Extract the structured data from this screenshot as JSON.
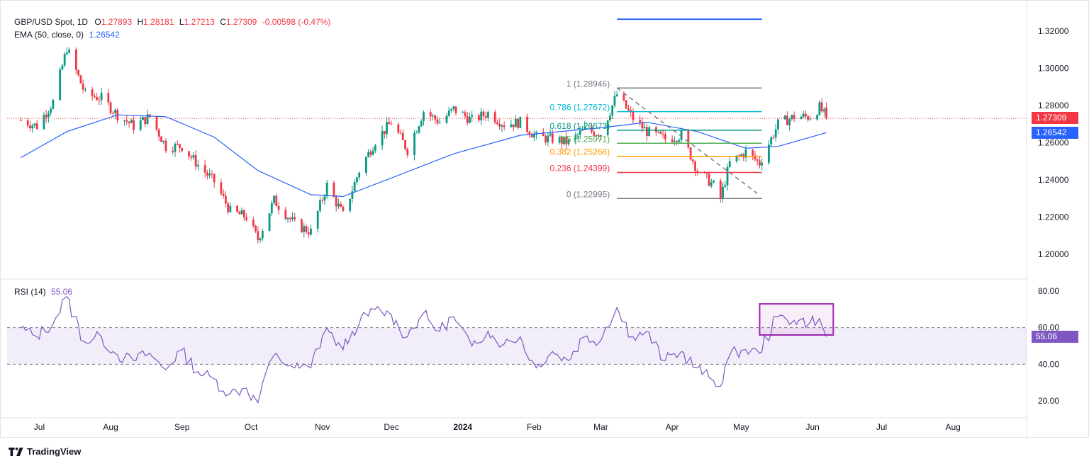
{
  "header": {
    "symbol": "GBP/USD Spot, 1D",
    "open_label": "O",
    "open": "1.27893",
    "high_label": "H",
    "high": "1.28181",
    "low_label": "L",
    "low": "1.27213",
    "close_label": "C",
    "close": "1.27309",
    "change": "-0.00598 (-0.47%)",
    "ema_label": "EMA (50, close, 0)",
    "ema_value": "1.26542",
    "rsi_label": "RSI (14)",
    "rsi_value": "55.06"
  },
  "price_tags": {
    "last": "1.27309",
    "ema": "1.26542",
    "rsi": "55.06"
  },
  "logo_text": "TradingView",
  "colors": {
    "up": "#089981",
    "down": "#f23645",
    "ema": "#2962ff",
    "rsi": "#7e57c2",
    "fib_gray": "#787b86",
    "fib_teal": "#00bcd4",
    "fib_green": "#4caf50",
    "fib_orange": "#ff9800",
    "fib_red": "#f23645",
    "box": "#9c27b0"
  },
  "chart_data": [
    {
      "type": "candlestick",
      "title": "GBP/USD Spot, 1D",
      "y_range": [
        1.19,
        1.33
      ],
      "y_ticks": [
        "1.32000",
        "1.30000",
        "1.28000",
        "1.26000",
        "1.24000",
        "1.22000",
        "1.20000"
      ],
      "x_ticks": [
        "Jul",
        "Aug",
        "Sep",
        "Oct",
        "Nov",
        "Dec",
        "2024",
        "Feb",
        "Mar",
        "Apr",
        "May",
        "Jun",
        "Jul",
        "Aug"
      ],
      "last_price": 1.27309,
      "ema50_last": 1.26542,
      "close_path": [
        [
          "2023-06-23",
          1.272
        ],
        [
          "2023-06-30",
          1.269
        ],
        [
          "2023-07-07",
          1.282
        ],
        [
          "2023-07-13",
          1.311
        ],
        [
          "2023-07-21",
          1.286
        ],
        [
          "2023-07-28",
          1.284
        ],
        [
          "2023-08-04",
          1.275
        ],
        [
          "2023-08-11",
          1.269
        ],
        [
          "2023-08-18",
          1.274
        ],
        [
          "2023-08-25",
          1.258
        ],
        [
          "2023-09-01",
          1.258
        ],
        [
          "2023-09-08",
          1.248
        ],
        [
          "2023-09-15",
          1.239
        ],
        [
          "2023-09-22",
          1.223
        ],
        [
          "2023-09-29",
          1.22
        ],
        [
          "2023-10-04",
          1.208
        ],
        [
          "2023-10-11",
          1.229
        ],
        [
          "2023-10-20",
          1.216
        ],
        [
          "2023-10-27",
          1.212
        ],
        [
          "2023-11-03",
          1.237
        ],
        [
          "2023-11-10",
          1.221
        ],
        [
          "2023-11-17",
          1.245
        ],
        [
          "2023-11-24",
          1.261
        ],
        [
          "2023-12-01",
          1.271
        ],
        [
          "2023-12-08",
          1.256
        ],
        [
          "2023-12-15",
          1.277
        ],
        [
          "2023-12-22",
          1.271
        ],
        [
          "2023-12-28",
          1.278
        ],
        [
          "2024-01-05",
          1.272
        ],
        [
          "2024-01-12",
          1.276
        ],
        [
          "2024-01-19",
          1.27
        ],
        [
          "2024-01-26",
          1.271
        ],
        [
          "2024-02-02",
          1.263
        ],
        [
          "2024-02-09",
          1.262
        ],
        [
          "2024-02-16",
          1.26
        ],
        [
          "2024-02-23",
          1.267
        ],
        [
          "2024-03-01",
          1.265
        ],
        [
          "2024-03-08",
          1.286
        ],
        [
          "2024-03-15",
          1.273
        ],
        [
          "2024-03-21",
          1.266
        ],
        [
          "2024-03-29",
          1.262
        ],
        [
          "2024-04-05",
          1.264
        ],
        [
          "2024-04-12",
          1.245
        ],
        [
          "2024-04-19",
          1.237
        ],
        [
          "2024-04-22",
          1.23
        ],
        [
          "2024-04-26",
          1.249
        ],
        [
          "2024-05-03",
          1.255
        ],
        [
          "2024-05-09",
          1.249
        ],
        [
          "2024-05-17",
          1.27
        ],
        [
          "2024-05-24",
          1.274
        ],
        [
          "2024-05-31",
          1.274
        ],
        [
          "2024-06-04",
          1.279
        ],
        [
          "2024-06-07",
          1.273
        ]
      ],
      "ema50_path": [
        [
          "2023-06-23",
          1.252
        ],
        [
          "2023-07-13",
          1.266
        ],
        [
          "2023-08-04",
          1.275
        ],
        [
          "2023-08-25",
          1.274
        ],
        [
          "2023-09-15",
          1.263
        ],
        [
          "2023-10-04",
          1.245
        ],
        [
          "2023-10-27",
          1.232
        ],
        [
          "2023-11-10",
          1.231
        ],
        [
          "2023-12-01",
          1.241
        ],
        [
          "2023-12-28",
          1.254
        ],
        [
          "2024-01-26",
          1.264
        ],
        [
          "2024-03-01",
          1.268
        ],
        [
          "2024-03-21",
          1.271
        ],
        [
          "2024-04-12",
          1.266
        ],
        [
          "2024-05-03",
          1.257
        ],
        [
          "2024-05-17",
          1.258
        ],
        [
          "2024-06-07",
          1.2654
        ]
      ],
      "fibonacci": {
        "from": "2024-03-08",
        "to": "2024-04-22",
        "levels": [
          {
            "ratio": "1",
            "label": "1 (1.28946)",
            "price": 1.28946,
            "color": "#787b86"
          },
          {
            "ratio": "0.786",
            "label": "0.786 (1.27672)",
            "price": 1.27672,
            "color": "#00bcd4"
          },
          {
            "ratio": "0.618",
            "label": "0.618 (1.26673)",
            "price": 1.26673,
            "color": "#089981"
          },
          {
            "ratio": "0.5",
            "label": "0.5 (1.25971)",
            "price": 1.25971,
            "color": "#4caf50"
          },
          {
            "ratio": "0.382",
            "label": "0.382 (1.25268)",
            "price": 1.25268,
            "color": "#ff9800"
          },
          {
            "ratio": "0.236",
            "label": "0.236 (1.24399)",
            "price": 1.24399,
            "color": "#f23645"
          },
          {
            "ratio": "0",
            "label": "0 (1.22995)",
            "price": 1.22995,
            "color": "#787b86"
          }
        ],
        "extra_line_price": 1.3265
      }
    },
    {
      "type": "line",
      "title": "RSI (14)",
      "y_range": [
        15,
        85
      ],
      "y_ticks": [
        "80.00",
        "60.00",
        "40.00",
        "20.00"
      ],
      "band": [
        40,
        60
      ],
      "last": 55.06,
      "path": [
        [
          "2023-06-23",
          60
        ],
        [
          "2023-06-30",
          55
        ],
        [
          "2023-07-07",
          62
        ],
        [
          "2023-07-13",
          77
        ],
        [
          "2023-07-21",
          52
        ],
        [
          "2023-07-28",
          55
        ],
        [
          "2023-08-04",
          45
        ],
        [
          "2023-08-11",
          42
        ],
        [
          "2023-08-18",
          46
        ],
        [
          "2023-08-25",
          37
        ],
        [
          "2023-09-01",
          48
        ],
        [
          "2023-09-08",
          36
        ],
        [
          "2023-09-15",
          32
        ],
        [
          "2023-09-22",
          24
        ],
        [
          "2023-09-29",
          27
        ],
        [
          "2023-10-04",
          19
        ],
        [
          "2023-10-11",
          45
        ],
        [
          "2023-10-20",
          38
        ],
        [
          "2023-10-27",
          38
        ],
        [
          "2023-11-03",
          60
        ],
        [
          "2023-11-10",
          48
        ],
        [
          "2023-11-17",
          62
        ],
        [
          "2023-11-24",
          70
        ],
        [
          "2023-12-01",
          67
        ],
        [
          "2023-12-08",
          55
        ],
        [
          "2023-12-15",
          68
        ],
        [
          "2023-12-22",
          58
        ],
        [
          "2023-12-28",
          66
        ],
        [
          "2024-01-05",
          50
        ],
        [
          "2024-01-12",
          58
        ],
        [
          "2024-01-19",
          51
        ],
        [
          "2024-01-26",
          55
        ],
        [
          "2024-02-02",
          38
        ],
        [
          "2024-02-09",
          47
        ],
        [
          "2024-02-16",
          42
        ],
        [
          "2024-02-23",
          55
        ],
        [
          "2024-03-01",
          53
        ],
        [
          "2024-03-08",
          71
        ],
        [
          "2024-03-15",
          55
        ],
        [
          "2024-03-21",
          58
        ],
        [
          "2024-03-29",
          42
        ],
        [
          "2024-04-05",
          47
        ],
        [
          "2024-04-12",
          38
        ],
        [
          "2024-04-19",
          31
        ],
        [
          "2024-04-22",
          28
        ],
        [
          "2024-04-26",
          45
        ],
        [
          "2024-05-03",
          48
        ],
        [
          "2024-05-09",
          46
        ],
        [
          "2024-05-17",
          66
        ],
        [
          "2024-05-24",
          64
        ],
        [
          "2024-05-31",
          63
        ],
        [
          "2024-06-04",
          65
        ],
        [
          "2024-06-07",
          55.06
        ]
      ],
      "highlight_box": {
        "from": "2024-05-09",
        "to": "2024-06-10",
        "y_range": [
          56,
          73
        ]
      }
    }
  ]
}
